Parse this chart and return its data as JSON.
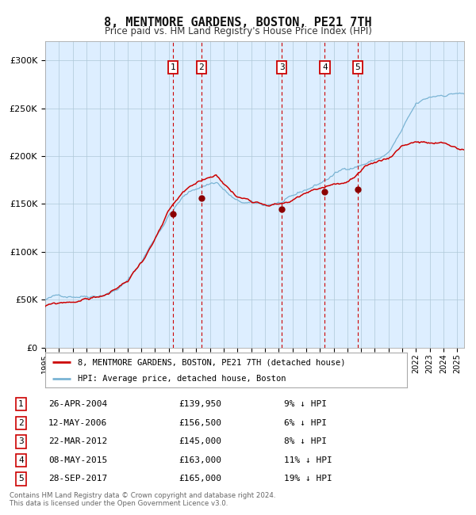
{
  "title": "8, MENTMORE GARDENS, BOSTON, PE21 7TH",
  "subtitle": "Price paid vs. HM Land Registry's House Price Index (HPI)",
  "hpi_color": "#7ab4d4",
  "price_color": "#cc0000",
  "sale_dot_color": "#8b0000",
  "dashed_line_color": "#cc0000",
  "background_color": "#ddeeff",
  "ylim": [
    0,
    320000
  ],
  "yticks": [
    0,
    50000,
    100000,
    150000,
    200000,
    250000,
    300000
  ],
  "xlim_start": 1995.0,
  "xlim_end": 2025.5,
  "sales": [
    {
      "num": 1,
      "date": "26-APR-2004",
      "year": 2004.32,
      "price": 139950,
      "pct": "9%"
    },
    {
      "num": 2,
      "date": "12-MAY-2006",
      "year": 2006.37,
      "price": 156500,
      "pct": "6%"
    },
    {
      "num": 3,
      "date": "22-MAR-2012",
      "year": 2012.22,
      "price": 145000,
      "pct": "8%"
    },
    {
      "num": 4,
      "date": "08-MAY-2015",
      "year": 2015.36,
      "price": 163000,
      "pct": "11%"
    },
    {
      "num": 5,
      "date": "28-SEP-2017",
      "year": 2017.74,
      "price": 165000,
      "pct": "19%"
    }
  ],
  "legend_label_price": "8, MENTMORE GARDENS, BOSTON, PE21 7TH (detached house)",
  "legend_label_hpi": "HPI: Average price, detached house, Boston",
  "footer1": "Contains HM Land Registry data © Crown copyright and database right 2024.",
  "footer2": "This data is licensed under the Open Government Licence v3.0."
}
